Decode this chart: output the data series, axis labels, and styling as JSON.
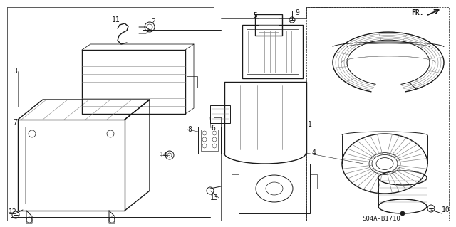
{
  "background_color": "#f5f5f5",
  "diagram_code": "S04A-B1710",
  "lw": 0.7,
  "dark": "#1a1a1a",
  "gray": "#888888",
  "lightgray": "#cccccc"
}
